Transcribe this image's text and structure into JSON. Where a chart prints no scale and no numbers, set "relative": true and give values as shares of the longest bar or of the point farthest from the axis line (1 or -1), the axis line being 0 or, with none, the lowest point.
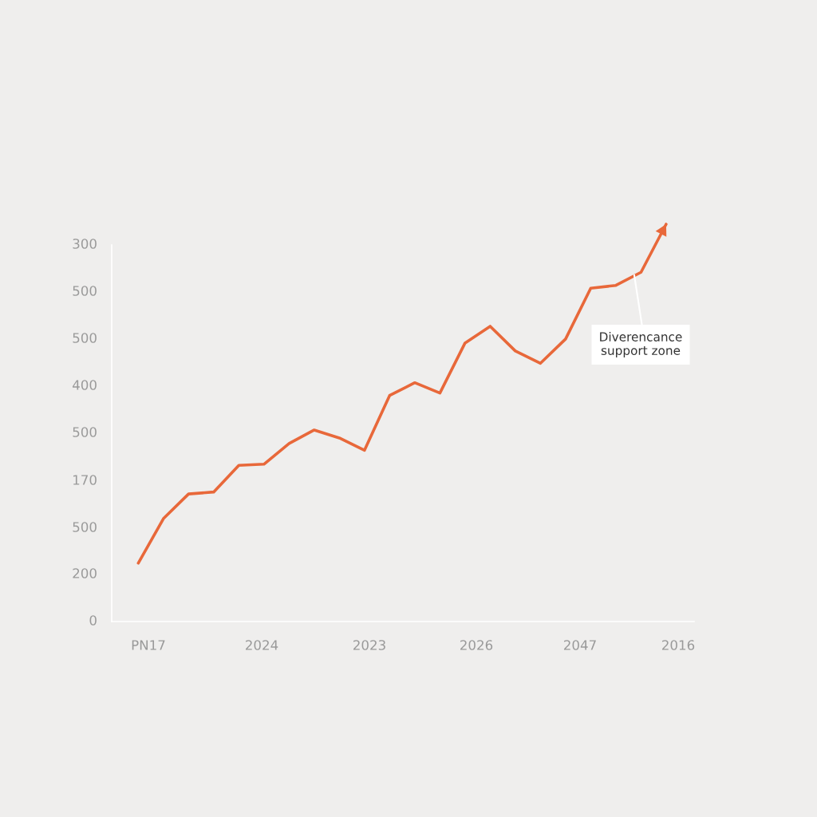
{
  "chart_data": {
    "type": "line",
    "relative": true,
    "categories": [
      null,
      null,
      null,
      null,
      null,
      null,
      null,
      null,
      null,
      null,
      null,
      null,
      null,
      null,
      null,
      null,
      null,
      null,
      null,
      null,
      null,
      null
    ],
    "series": [
      {
        "color": "#e8683a",
        "values": [
          0.147,
          0.259,
          0.321,
          0.326,
          0.393,
          0.396,
          0.448,
          0.482,
          0.462,
          0.431,
          0.569,
          0.601,
          0.575,
          0.701,
          0.743,
          0.681,
          0.65,
          0.711,
          0.839,
          0.846,
          0.879,
          1
        ]
      }
    ],
    "annotations": [
      "300",
      "500",
      "500",
      "400",
      "500",
      "170",
      "500",
      "200",
      "0",
      "PN17",
      "2024",
      "2023",
      "2026",
      "2047",
      "2016",
      "Diverencance\nsupport zone"
    ],
    "grid": false,
    "marker": "none",
    "line_style": "solid"
  }
}
